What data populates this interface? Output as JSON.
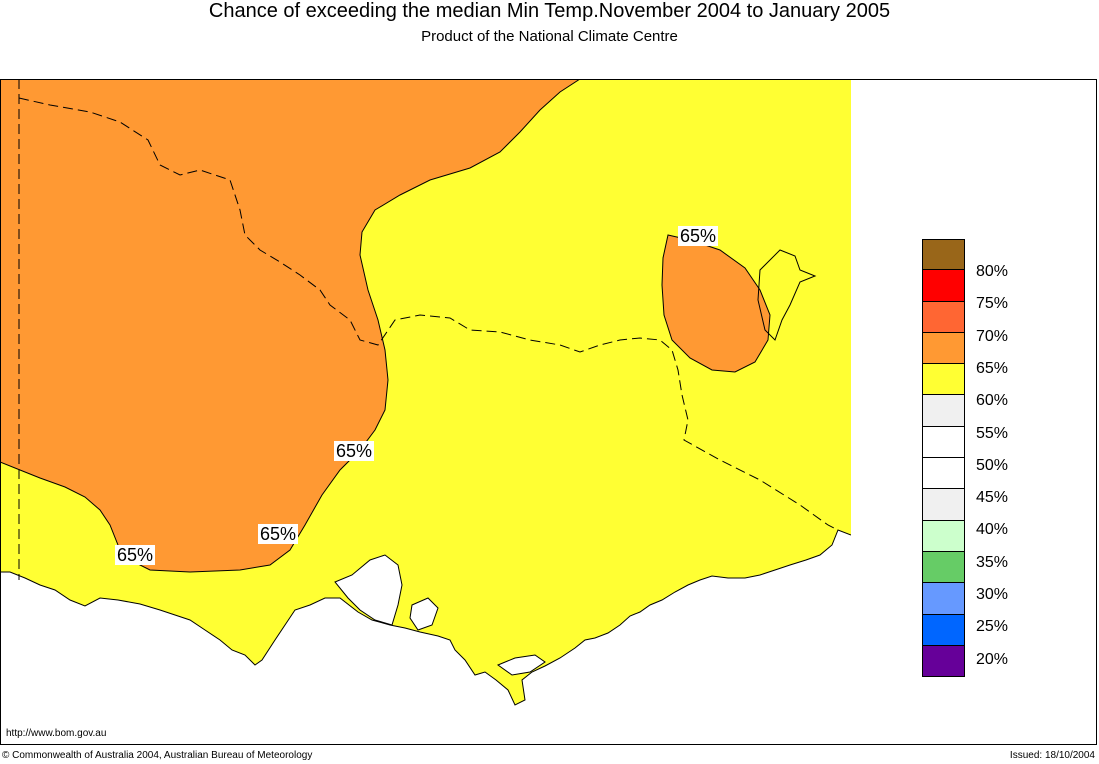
{
  "header": {
    "title": "Chance of exceeding the median Min Temp.November 2004 to January 2005",
    "subtitle": "Product of the National Climate Centre"
  },
  "map": {
    "contour_labels": [
      "65%",
      "65%",
      "65%",
      "65%"
    ],
    "colors": {
      "ocean": "#ffffff",
      "band_60_65": "#ffff33",
      "band_65_70": "#ff9933"
    }
  },
  "legend": {
    "colors": [
      "#996619",
      "#ff0000",
      "#ff6633",
      "#ff9933",
      "#ffff33",
      "#f0f0f0",
      "#ffffff",
      "#ffffff",
      "#f0f0f0",
      "#ccffcc",
      "#66cc66",
      "#6699ff",
      "#0066ff",
      "#660099"
    ],
    "labels": [
      "80%",
      "75%",
      "70%",
      "65%",
      "60%",
      "55%",
      "50%",
      "45%",
      "40%",
      "35%",
      "30%",
      "25%",
      "20%"
    ]
  },
  "footer": {
    "url": "http://www.bom.gov.au",
    "copyright": "© Commonwealth of Australia 2004, Australian Bureau of Meteorology",
    "issued": "Issued: 18/10/2004"
  }
}
